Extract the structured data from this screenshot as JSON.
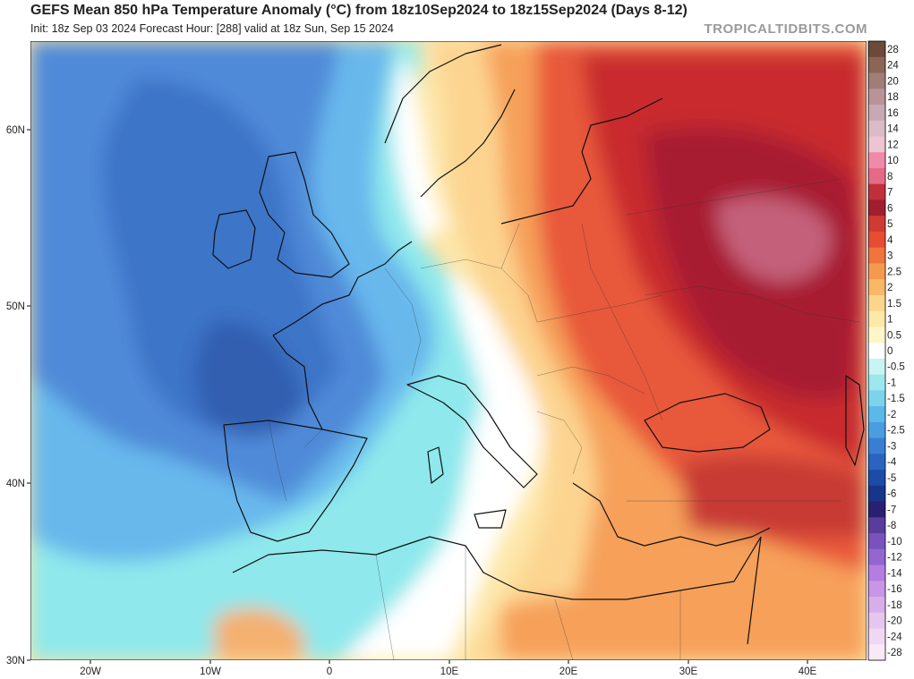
{
  "header": {
    "title": "GEFS Mean 850 hPa Temperature Anomaly (°C) from 18z10Sep2024 to 18z15Sep2024 (Days 8-12)",
    "subtitle": "Init: 18z Sep 03 2024   Forecast Hour: [288]   valid at 18z Sun, Sep 15 2024",
    "brand": "TROPICALTIDBITS.COM"
  },
  "map": {
    "lon_ticks": [
      "20W",
      "10W",
      "0",
      "10E",
      "20E",
      "30E",
      "40E"
    ],
    "lat_ticks": [
      "60N",
      "50N",
      "40N",
      "30N"
    ]
  },
  "colorbar": {
    "labels": [
      "28",
      "24",
      "20",
      "18",
      "16",
      "14",
      "12",
      "10",
      "8",
      "7",
      "6",
      "5",
      "4",
      "3",
      "2.5",
      "2",
      "1.5",
      "1",
      "0.5",
      "0",
      "-0.5",
      "-1",
      "-1.5",
      "-2",
      "-2.5",
      "-3",
      "-4",
      "-5",
      "-6",
      "-7",
      "-8",
      "-10",
      "-12",
      "-14",
      "-16",
      "-18",
      "-20",
      "-24",
      "-28"
    ],
    "colors": [
      "#6b4a3a",
      "#8a6656",
      "#a07e78",
      "#b8949a",
      "#c8a8b2",
      "#dcbac6",
      "#ecc4d2",
      "#f08aa8",
      "#e46a86",
      "#c0303c",
      "#a01e2e",
      "#d03a32",
      "#e84c34",
      "#f0743c",
      "#f49a50",
      "#f8b868",
      "#fcd48a",
      "#fde8a6",
      "#fff6c8",
      "#ffffff",
      "#c8f4f4",
      "#9ce8ec",
      "#7cd4ec",
      "#5cb8e8",
      "#4c9ce0",
      "#3a7ed4",
      "#2a64c0",
      "#1c4ca8",
      "#16368a",
      "#2a2070",
      "#5a3c9c",
      "#7a52bc",
      "#9466d0",
      "#b47ee0",
      "#c896e4",
      "#d8aeea",
      "#e6c6ee",
      "#f0d8f2",
      "#f8e8f8"
    ]
  },
  "map_colors": {
    "ocean_cold": "#4f8fdc",
    "ocean_mid": "#68aee8",
    "cyan": "#8ee8ec",
    "neutral": "#ffffff",
    "warm_light": "#fde0a0",
    "warm_orange": "#f6a85a",
    "warm_red": "#e8583a",
    "hot_red": "#c82e30",
    "very_hot": "#a4202e",
    "peak": "#c06070"
  }
}
